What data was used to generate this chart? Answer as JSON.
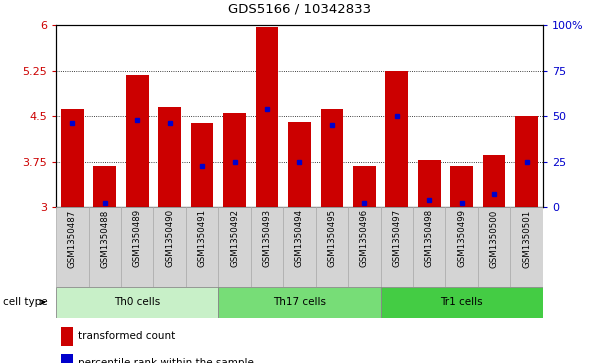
{
  "title": "GDS5166 / 10342833",
  "samples": [
    "GSM1350487",
    "GSM1350488",
    "GSM1350489",
    "GSM1350490",
    "GSM1350491",
    "GSM1350492",
    "GSM1350493",
    "GSM1350494",
    "GSM1350495",
    "GSM1350496",
    "GSM1350497",
    "GSM1350498",
    "GSM1350499",
    "GSM1350500",
    "GSM1350501"
  ],
  "bar_values": [
    4.62,
    3.68,
    5.18,
    4.65,
    4.38,
    4.55,
    5.97,
    4.4,
    4.62,
    3.68,
    5.25,
    3.78,
    3.68,
    3.85,
    4.5
  ],
  "percentile_values": [
    4.38,
    3.07,
    4.43,
    4.38,
    3.68,
    3.75,
    4.62,
    3.75,
    4.35,
    3.07,
    4.5,
    3.12,
    3.07,
    3.22,
    3.75
  ],
  "cell_groups": [
    {
      "label": "Th0 cells",
      "start": 0,
      "end": 5,
      "color": "#c8f0c8"
    },
    {
      "label": "Th17 cells",
      "start": 5,
      "end": 10,
      "color": "#77dd77"
    },
    {
      "label": "Tr1 cells",
      "start": 10,
      "end": 15,
      "color": "#44cc44"
    }
  ],
  "ylim_left": [
    3.0,
    6.0
  ],
  "yticks_left": [
    3.0,
    3.75,
    4.5,
    5.25,
    6.0
  ],
  "ytick_labels_left": [
    "3",
    "3.75",
    "4.5",
    "5.25",
    "6"
  ],
  "yticks_right": [
    0,
    25,
    50,
    75,
    100
  ],
  "ytick_labels_right": [
    "0",
    "25",
    "50",
    "75",
    "100%"
  ],
  "bar_color": "#cc0000",
  "percentile_color": "#0000cc",
  "bar_width": 0.7,
  "grid_dotted_at": [
    3.75,
    4.5,
    5.25
  ],
  "cell_type_label": "cell type",
  "legend_items": [
    {
      "label": "transformed count",
      "color": "#cc0000"
    },
    {
      "label": "percentile rank within the sample",
      "color": "#0000cc"
    }
  ],
  "sample_bg_color": "#d4d4d4",
  "sample_border_color": "#aaaaaa"
}
